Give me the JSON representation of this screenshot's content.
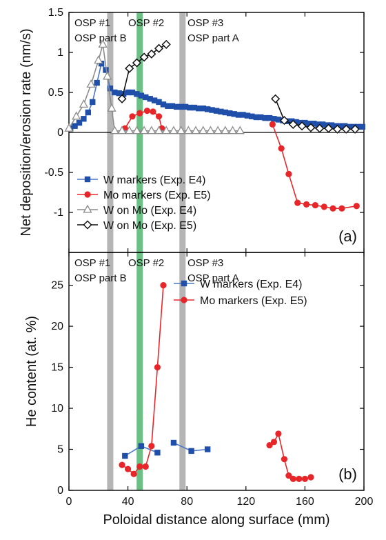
{
  "chart_data": [
    {
      "id": "a",
      "type": "line",
      "panel_label": "(a)",
      "ylabel": "Net deposition/erosion rate (nm/s)",
      "xlim": [
        0,
        200
      ],
      "ylim": [
        -1.5,
        1.5
      ],
      "y_ticks": [
        "1.5",
        "1",
        "0.5",
        "0",
        "-0.5",
        "-1"
      ],
      "y_tick_values": [
        1.5,
        1,
        0.5,
        0,
        -0.5,
        -1
      ],
      "zero_line": true,
      "osp_labels": [
        {
          "name": "OSP #1",
          "part": "OSP part B"
        },
        {
          "name": "OSP #2",
          "part": ""
        },
        {
          "name": "OSP #3",
          "part": "OSP part A"
        }
      ],
      "legend_position": "lower-left",
      "series": [
        {
          "name": "W markers (Exp. E4)",
          "color": "#1f4fa8",
          "marker": "square",
          "line": "#4a78c8",
          "x": [
            1,
            4,
            7,
            10,
            13,
            16,
            19,
            22,
            25,
            28,
            31,
            34,
            37,
            40,
            43,
            46,
            49,
            52,
            55,
            58,
            61,
            64,
            67,
            70,
            73,
            76,
            79,
            82,
            85,
            88,
            91,
            94,
            97,
            100,
            103,
            106,
            109,
            112,
            115,
            118,
            121,
            124,
            127,
            130,
            133,
            136,
            139,
            142,
            145,
            148,
            151,
            154,
            157,
            160,
            163,
            166,
            169,
            172,
            175,
            178,
            181,
            184,
            187,
            190,
            193,
            196,
            199
          ],
          "y": [
            0.05,
            0.08,
            0.12,
            0.17,
            0.25,
            0.38,
            0.62,
            0.86,
            0.78,
            0.55,
            0.5,
            0.49,
            0.48,
            0.5,
            0.5,
            0.48,
            0.46,
            0.44,
            0.42,
            0.4,
            0.38,
            0.35,
            0.33,
            0.33,
            0.32,
            0.32,
            0.32,
            0.31,
            0.31,
            0.3,
            0.3,
            0.29,
            0.28,
            0.27,
            0.26,
            0.25,
            0.24,
            0.23,
            0.22,
            0.22,
            0.21,
            0.2,
            0.19,
            0.19,
            0.18,
            0.18,
            0.17,
            0.16,
            0.15,
            0.14,
            0.14,
            0.13,
            0.12,
            0.12,
            0.11,
            0.11,
            0.1,
            0.1,
            0.09,
            0.09,
            0.08,
            0.08,
            0.08,
            0.07,
            0.07,
            0.07,
            0.07
          ]
        },
        {
          "name": "Mo markers (Exp. E5)",
          "color": "#e8262a",
          "marker": "circle",
          "line": "#e8262a",
          "segments": [
            {
              "x": [
                38,
                43,
                48,
                53,
                57,
                61,
                63
              ],
              "y": [
                0.05,
                0.2,
                0.24,
                0.27,
                0.26,
                0.2,
                0.05
              ]
            },
            {
              "x": [
                138,
                144,
                149,
                155,
                161,
                167,
                173,
                179,
                185,
                195
              ],
              "y": [
                0.1,
                -0.2,
                -0.52,
                -0.88,
                -0.9,
                -0.91,
                -0.93,
                -0.95,
                -0.95,
                -0.92
              ]
            }
          ]
        },
        {
          "name": "W on Mo (Exp. E4)",
          "color": "#8c8c8c",
          "marker": "triangle",
          "line": "#8c8c8c",
          "x": [
            0,
            5,
            10,
            15,
            20,
            23,
            26,
            29,
            31,
            36,
            41,
            46,
            51,
            56,
            61,
            66,
            71,
            76,
            81,
            86,
            91,
            96,
            101,
            106,
            111,
            116
          ],
          "y": [
            0.05,
            0.2,
            0.35,
            0.6,
            0.9,
            1.1,
            0.7,
            0.3,
            0.02,
            0.02,
            0.02,
            0.02,
            0.02,
            0.02,
            0.02,
            0.02,
            0.02,
            0.02,
            0.02,
            0.02,
            0.02,
            0.02,
            0.02,
            0.02,
            0.02,
            0.02
          ]
        },
        {
          "name": "W on Mo (Exp. E5)",
          "color": "#111111",
          "marker": "diamond",
          "line": "#111111",
          "segments": [
            {
              "x": [
                36,
                41,
                46,
                51,
                56,
                61,
                66
              ],
              "y": [
                0.42,
                0.8,
                0.87,
                0.94,
                0.98,
                1.05,
                1.1
              ]
            },
            {
              "x": [
                140,
                146,
                152,
                158,
                164,
                170,
                176,
                182,
                188,
                194
              ],
              "y": [
                0.42,
                0.15,
                0.1,
                0.08,
                0.06,
                0.05,
                0.05,
                0.04,
                0.04,
                0.04
              ]
            }
          ]
        }
      ]
    },
    {
      "id": "b",
      "type": "line",
      "panel_label": "(b)",
      "ylabel": "He content (at. %)",
      "xlabel": "Poloidal distance along surface (mm)",
      "xlim": [
        0,
        200
      ],
      "ylim": [
        0,
        29
      ],
      "x_ticks": [
        "0",
        "40",
        "80",
        "120",
        "160",
        "200"
      ],
      "x_tick_values": [
        0,
        40,
        80,
        120,
        160,
        200
      ],
      "y_ticks": [
        "0",
        "5",
        "10",
        "15",
        "20",
        "25"
      ],
      "y_tick_values": [
        0,
        5,
        10,
        15,
        20,
        25
      ],
      "osp_labels": [
        {
          "name": "OSP #1",
          "part": "OSP part B"
        },
        {
          "name": "OSP #2",
          "part": ""
        },
        {
          "name": "OSP #3",
          "part": "OSP part A"
        }
      ],
      "legend_position": "top-right",
      "series": [
        {
          "name": "W markers (Exp. E4)",
          "color": "#1f4fa8",
          "marker": "square",
          "line": "#4a78c8",
          "segments": [
            {
              "x": [
                38,
                49,
                60
              ],
              "y": [
                4.2,
                5.4,
                4.6
              ]
            },
            {
              "x": [
                71,
                83,
                94
              ],
              "y": [
                5.8,
                4.8,
                5.0
              ]
            }
          ]
        },
        {
          "name": "Mo markers (Exp. E5)",
          "color": "#e8262a",
          "marker": "circle",
          "line": "#e8262a",
          "segments": [
            {
              "x": [
                36,
                40,
                44,
                48,
                52,
                56,
                60,
                64
              ],
              "y": [
                3.1,
                2.6,
                2.0,
                2.9,
                2.9,
                5.4,
                15.0,
                25.0
              ]
            },
            {
              "x": [
                136,
                139,
                142,
                146,
                149,
                152,
                156,
                160,
                164
              ],
              "y": [
                5.5,
                5.9,
                6.9,
                3.8,
                1.8,
                1.4,
                1.4,
                1.4,
                1.6
              ]
            }
          ]
        }
      ]
    }
  ],
  "shared_bands": [
    {
      "x": 28,
      "color": "#b5b5b5"
    },
    {
      "x": 48,
      "color": "#6cbf85"
    },
    {
      "x": 77,
      "color": "#b5b5b5"
    }
  ]
}
